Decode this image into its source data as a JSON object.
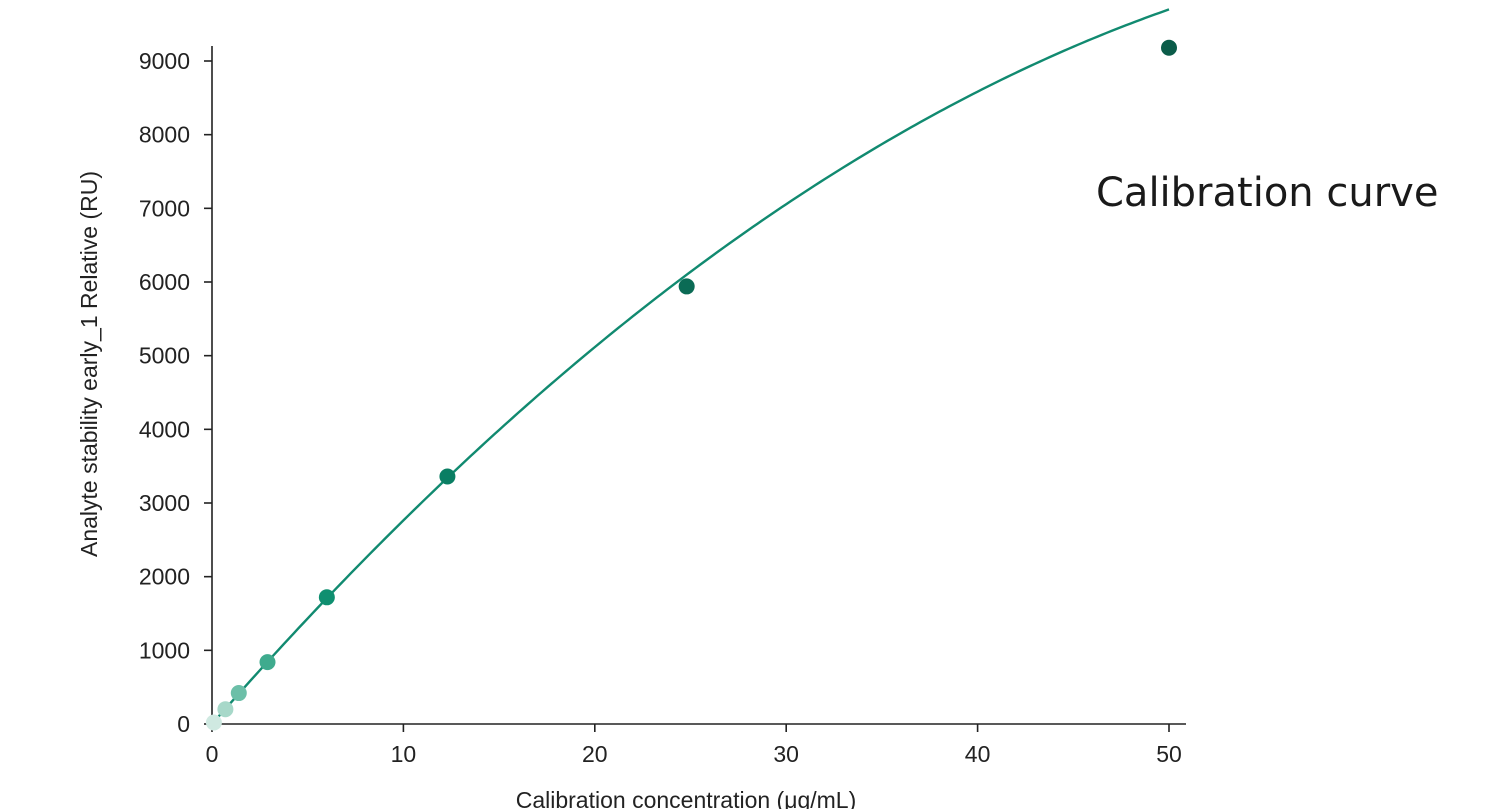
{
  "chart_data": {
    "type": "scatter",
    "title": "Calibration curve",
    "xlabel": "Calibration concentration (μg/mL)",
    "ylabel": "Analyte stability early_1 Relative (RU)",
    "xlim": [
      0,
      50
    ],
    "ylim": [
      0,
      9000
    ],
    "x_ticks": [
      0,
      10,
      20,
      30,
      40,
      50
    ],
    "y_ticks": [
      0,
      1000,
      2000,
      3000,
      4000,
      5000,
      6000,
      7000,
      8000,
      9000
    ],
    "grid": false,
    "legend": "none",
    "series": [
      {
        "points": [
          {
            "x": 0.1,
            "y": 20
          },
          {
            "x": 0.7,
            "y": 200
          },
          {
            "x": 1.4,
            "y": 420
          },
          {
            "x": 2.9,
            "y": 840
          },
          {
            "x": 6.0,
            "y": 1720
          },
          {
            "x": 12.3,
            "y": 3360
          },
          {
            "x": 24.8,
            "y": 5940
          },
          {
            "x": 50.0,
            "y": 9180
          }
        ],
        "fit_curve": {
          "a": 297.0,
          "b": -2.06
        },
        "point_colors": [
          "#cfe9e1",
          "#a7d8c9",
          "#6cbfa8",
          "#3fab8e",
          "#0f8f70",
          "#0a7e63",
          "#0b6b55",
          "#0b5c49"
        ],
        "line_color": "#118a70"
      }
    ]
  }
}
